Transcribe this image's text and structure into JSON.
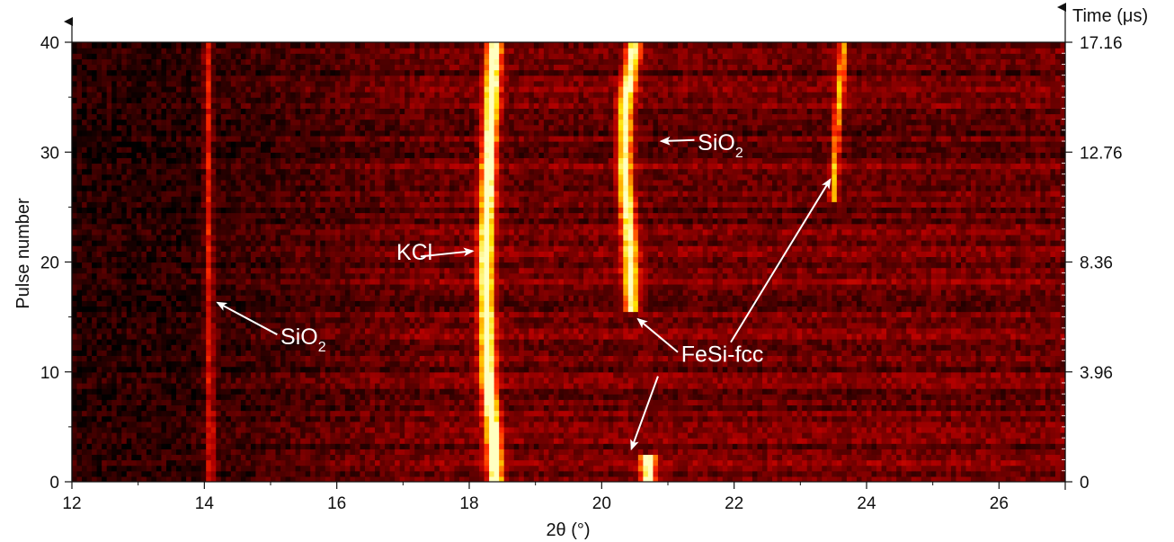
{
  "chart_data": {
    "type": "heatmap",
    "title": "",
    "xlabel": "2θ (°)",
    "ylabel": "Pulse number",
    "y2label": "Time (μs)",
    "xlim": [
      12,
      27
    ],
    "ylim": [
      0,
      40
    ],
    "x_ticks": [
      "12",
      "14",
      "16",
      "18",
      "20",
      "22",
      "24",
      "26"
    ],
    "y_ticks": [
      "0",
      "10",
      "20",
      "30",
      "40"
    ],
    "y2_ticks": [
      {
        "pulse": 0,
        "label": "0"
      },
      {
        "pulse": 10,
        "label": "3.96"
      },
      {
        "pulse": 20,
        "label": "8.36"
      },
      {
        "pulse": 30,
        "label": "12.76"
      },
      {
        "pulse": 40,
        "label": "17.16"
      }
    ],
    "colormap": [
      "#000000",
      "#5a0000",
      "#b40000",
      "#ff2a00",
      "#ff9a00",
      "#ffe000",
      "#ffffc0"
    ],
    "peaks": [
      {
        "name": "SiO2 (14.1°)",
        "points": [
          [
            0,
            14.1
          ],
          [
            40,
            14.05
          ]
        ],
        "intensity": 0.35
      },
      {
        "name": "KCl",
        "points": [
          [
            0,
            18.4
          ],
          [
            5,
            18.35
          ],
          [
            10,
            18.28
          ],
          [
            20,
            18.25
          ],
          [
            30,
            18.3
          ],
          [
            40,
            18.38
          ]
        ],
        "intensity": 1.0
      },
      {
        "name": "FeSi-fcc (20.7°)",
        "points": [
          [
            0,
            20.7
          ],
          [
            2,
            20.7
          ]
        ],
        "intensity": 0.9
      },
      {
        "name": "FeSi-fcc (20.4°)",
        "points": [
          [
            16,
            20.45
          ],
          [
            22,
            20.42
          ],
          [
            28,
            20.35
          ],
          [
            34,
            20.35
          ],
          [
            40,
            20.5
          ]
        ],
        "intensity": 0.85
      },
      {
        "name": "SiO2 (23.6°)",
        "points": [
          [
            26,
            23.5
          ],
          [
            32,
            23.55
          ],
          [
            40,
            23.65
          ]
        ],
        "intensity": 0.55
      }
    ],
    "annotations": [
      {
        "label": "SiO",
        "sub": "2",
        "x": 15.15,
        "y": 12.5,
        "arrow_to": [
          14.2,
          16.3
        ]
      },
      {
        "label": "KCl",
        "x": 16.9,
        "y": 20.2,
        "arrow_to": [
          18.05,
          21.0
        ]
      },
      {
        "label": "SiO",
        "sub": "2",
        "x": 21.45,
        "y": 30.2,
        "arrow_to": [
          20.9,
          31.0
        ]
      },
      {
        "label": "FeSi-fcc",
        "x": 21.2,
        "y": 10.9,
        "arrow_to": [
          20.55,
          14.8
        ]
      },
      {
        "label": "FeSi-fcc",
        "arrow_from": [
          21.95,
          12.7
        ],
        "arrow_to": [
          23.45,
          27.5
        ]
      },
      {
        "arrow_from": [
          20.85,
          9.6
        ],
        "arrow_to": [
          20.45,
          3.0
        ]
      }
    ]
  }
}
